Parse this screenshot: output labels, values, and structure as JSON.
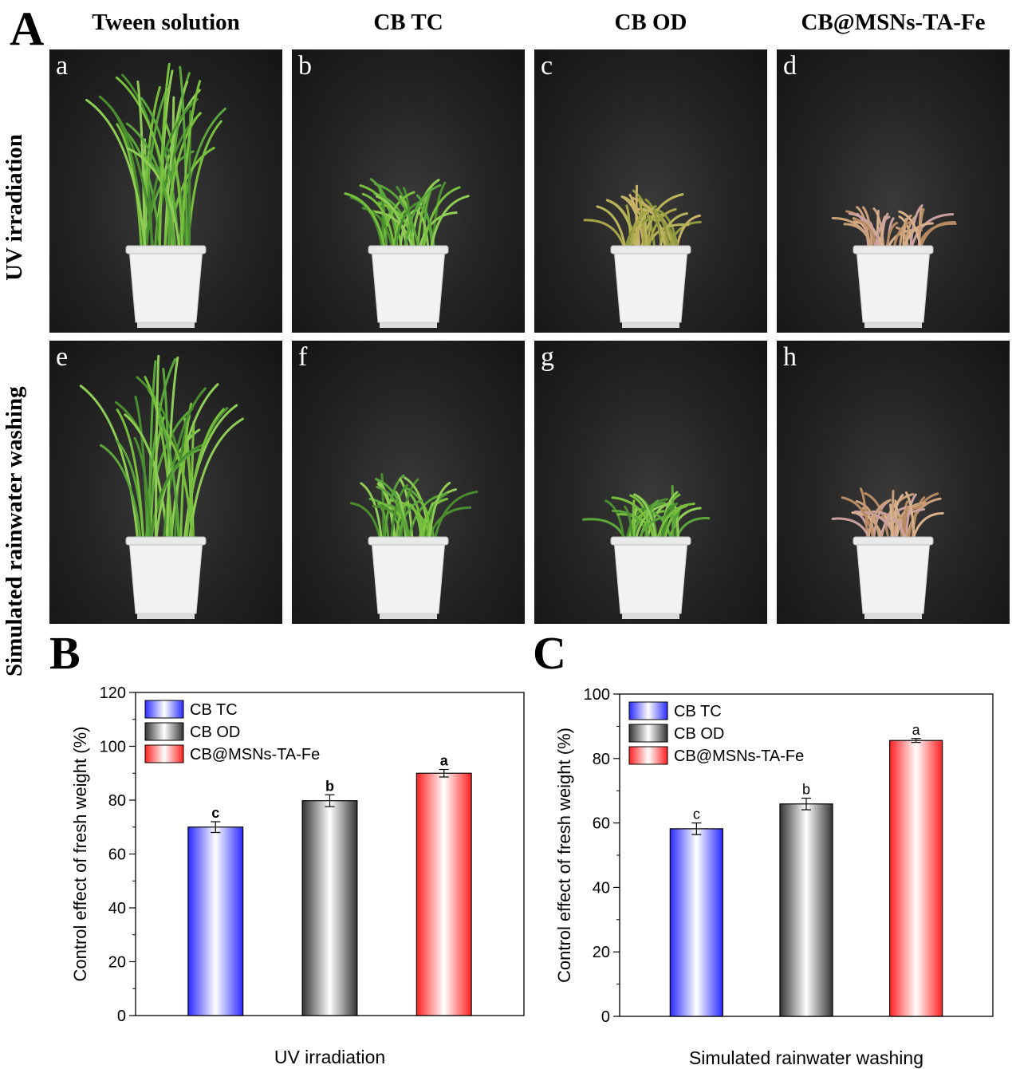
{
  "panel_a": {
    "letter": "A",
    "columns": [
      "Tween solution",
      "CB TC",
      "CB OD",
      "CB@MSNs-TA-Fe"
    ],
    "rows": [
      "UV irradiation",
      "Simulated rainwater washing"
    ],
    "photos": [
      {
        "label": "a",
        "growth": 1.0,
        "color": "healthy"
      },
      {
        "label": "b",
        "growth": 0.42,
        "color": "healthy"
      },
      {
        "label": "c",
        "growth": 0.36,
        "color": "yellowing"
      },
      {
        "label": "d",
        "growth": 0.26,
        "color": "withered"
      },
      {
        "label": "e",
        "growth": 1.0,
        "color": "healthy"
      },
      {
        "label": "f",
        "growth": 0.38,
        "color": "healthy"
      },
      {
        "label": "g",
        "growth": 0.3,
        "color": "healthy"
      },
      {
        "label": "h",
        "growth": 0.3,
        "color": "withered"
      }
    ]
  },
  "chart_data": [
    {
      "panel_letter": "B",
      "type": "bar",
      "xlabel": "UV irradiation",
      "ylabel": "Control effect of fresh weight (%)",
      "ylim": [
        0,
        120
      ],
      "yticks": [
        0,
        20,
        40,
        60,
        80,
        100,
        120
      ],
      "categories": [
        "CB TC",
        "CB OD",
        "CB@MSNs-TA-Fe"
      ],
      "values": [
        70,
        79.8,
        90
      ],
      "errors": [
        2.0,
        2.2,
        1.4
      ],
      "letters": [
        "c",
        "b",
        "a"
      ],
      "colors": [
        "#2a2aff",
        "#333333",
        "#ff2020"
      ],
      "legend": [
        "CB TC",
        "CB OD",
        "CB@MSNs-TA-Fe"
      ],
      "legend_position": "top-left"
    },
    {
      "panel_letter": "C",
      "type": "bar",
      "xlabel": "Simulated rainwater washing",
      "ylabel": "Control effect of fresh weight (%)",
      "ylim": [
        0,
        100
      ],
      "yticks": [
        0,
        20,
        40,
        60,
        80,
        100
      ],
      "categories": [
        "CB TC",
        "CB OD",
        "CB@MSNs-TA-Fe"
      ],
      "values": [
        58.2,
        65.9,
        85.6
      ],
      "errors": [
        1.8,
        1.8,
        0.6
      ],
      "letters": [
        "c",
        "b",
        "a"
      ],
      "colors": [
        "#2a2aff",
        "#333333",
        "#ff2020"
      ],
      "legend": [
        "CB TC",
        "CB OD",
        "CB@MSNs-TA-Fe"
      ],
      "legend_position": "top-left"
    }
  ]
}
